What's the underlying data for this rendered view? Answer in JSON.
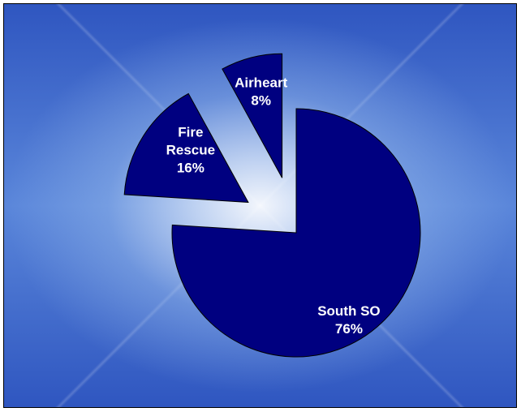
{
  "chart_data": {
    "type": "pie",
    "slice_color": "#000080",
    "slice_stroke": "#000000",
    "label_color": "#ffffff",
    "slices": [
      {
        "name": "South SO",
        "label_lines": [
          "South SO",
          "76%"
        ],
        "value": 76,
        "exploded": false
      },
      {
        "name": "Fire Rescue",
        "label_lines": [
          "Fire",
          "Rescue",
          "16%"
        ],
        "value": 16,
        "exploded": true
      },
      {
        "name": "Airheart",
        "label_lines": [
          "Airheart",
          "8%"
        ],
        "value": 8,
        "exploded": true
      }
    ]
  }
}
